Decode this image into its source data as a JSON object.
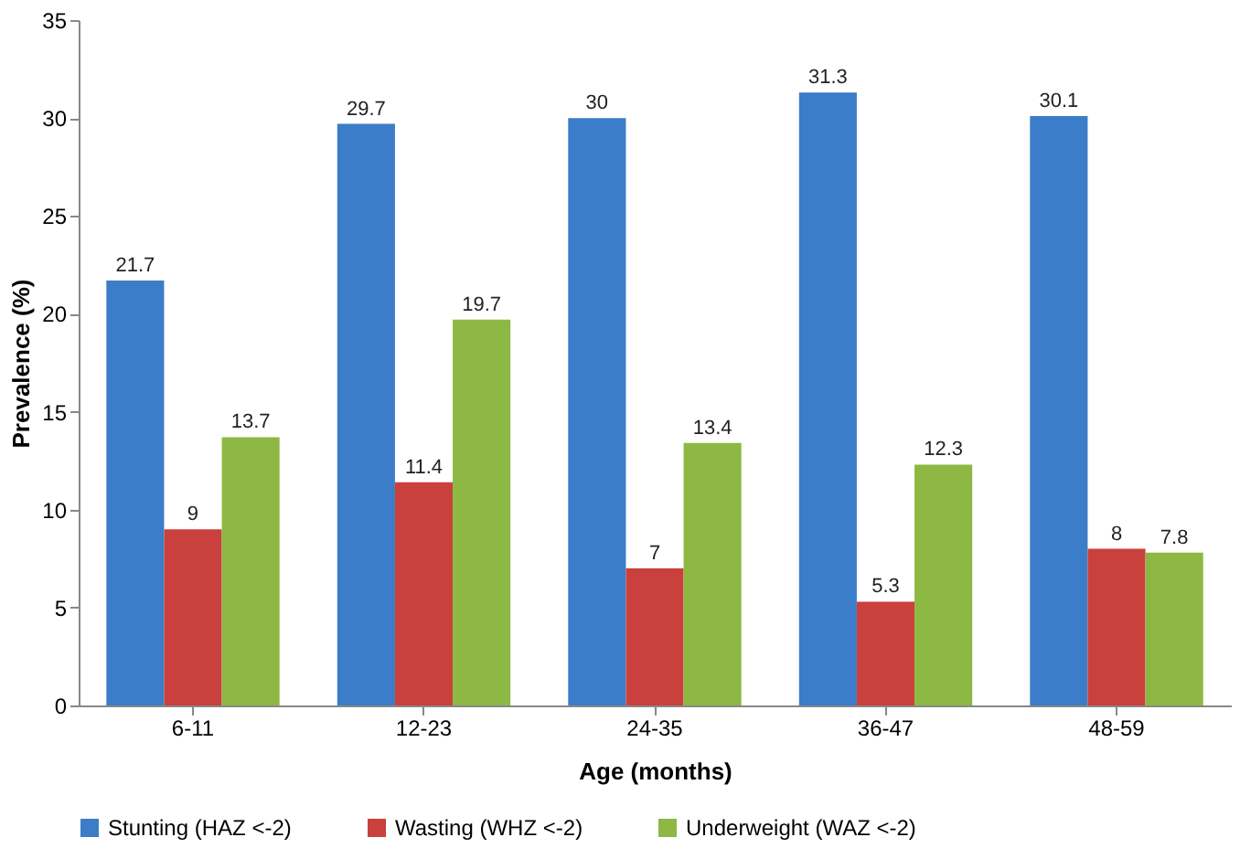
{
  "chart_data": {
    "type": "bar",
    "xlabel": "Age (months)",
    "ylabel": "Prevalence (%)",
    "categories": [
      "6-11",
      "12-23",
      "24-35",
      "36-47",
      "48-59"
    ],
    "series": [
      {
        "name": "Stunting (HAZ <-2)",
        "color": "#3b7dc8",
        "values": [
          21.7,
          29.7,
          30,
          31.3,
          30.1
        ]
      },
      {
        "name": "Wasting (WHZ <-2)",
        "color": "#c9403c",
        "values": [
          9,
          11.4,
          7,
          5.3,
          8
        ]
      },
      {
        "name": "Underweight (WAZ <-2)",
        "color": "#8db843",
        "values": [
          13.7,
          19.7,
          13.4,
          12.3,
          7.8
        ]
      }
    ],
    "ylim": [
      0,
      35
    ],
    "yticks": [
      0,
      5,
      10,
      15,
      20,
      25,
      30,
      35
    ],
    "grid": false,
    "legend": "bottom",
    "data_labels": true
  }
}
